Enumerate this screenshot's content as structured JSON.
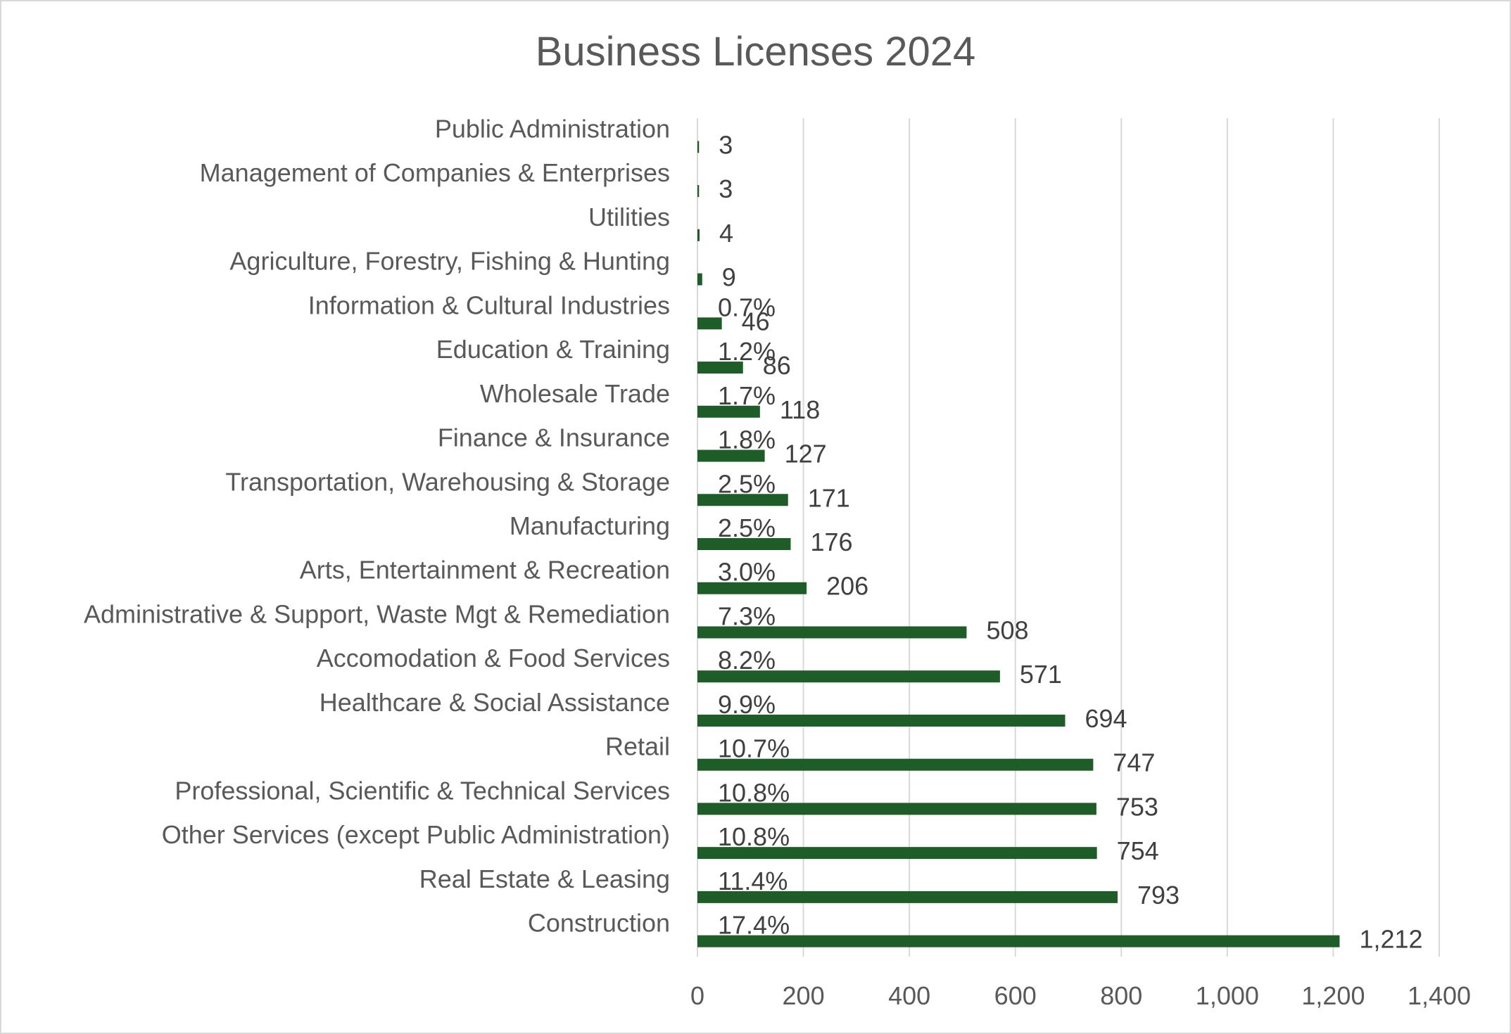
{
  "chart_data": {
    "type": "bar",
    "orientation": "horizontal",
    "title": "Business Licenses 2024",
    "xlabel": "",
    "ylabel": "",
    "xlim": [
      0,
      1400
    ],
    "x_ticks": [
      "0",
      "200",
      "400",
      "600",
      "800",
      "1,000",
      "1,200",
      "1,400"
    ],
    "x_tick_values": [
      0,
      200,
      400,
      600,
      800,
      1000,
      1200,
      1400
    ],
    "grid": "vertical",
    "legend": "none",
    "bar_color": "#1e5c28",
    "categories": [
      "Construction",
      "Real Estate & Leasing",
      "Other Services (except Public Administration)",
      "Professional, Scientific & Technical Services",
      "Retail",
      "Healthcare & Social Assistance",
      "Accomodation & Food Services",
      "Administrative & Support, Waste Mgt & Remediation",
      "Arts, Entertainment & Recreation",
      "Manufacturing",
      "Transportation, Warehousing & Storage",
      "Finance & Insurance",
      "Wholesale Trade",
      "Education & Training",
      "Information & Cultural Industries",
      "Agriculture, Forestry, Fishing & Hunting",
      "Utilities",
      "Management of Companies & Enterprises",
      "Public Administration"
    ],
    "values": [
      1212,
      793,
      754,
      753,
      747,
      694,
      571,
      508,
      206,
      176,
      171,
      127,
      118,
      86,
      46,
      9,
      4,
      3,
      3
    ],
    "value_labels": [
      "1,212",
      "793",
      "754",
      "753",
      "747",
      "694",
      "571",
      "508",
      "206",
      "176",
      "171",
      "127",
      "118",
      "86",
      "46",
      "9",
      "4",
      "3",
      "3"
    ],
    "percent_labels": [
      "17.4%",
      "11.4%",
      "10.8%",
      "10.8%",
      "10.7%",
      "9.9%",
      "8.2%",
      "7.3%",
      "3.0%",
      "2.5%",
      "2.5%",
      "1.8%",
      "1.7%",
      "1.2%",
      "0.7%",
      "",
      "",
      "",
      ""
    ]
  }
}
